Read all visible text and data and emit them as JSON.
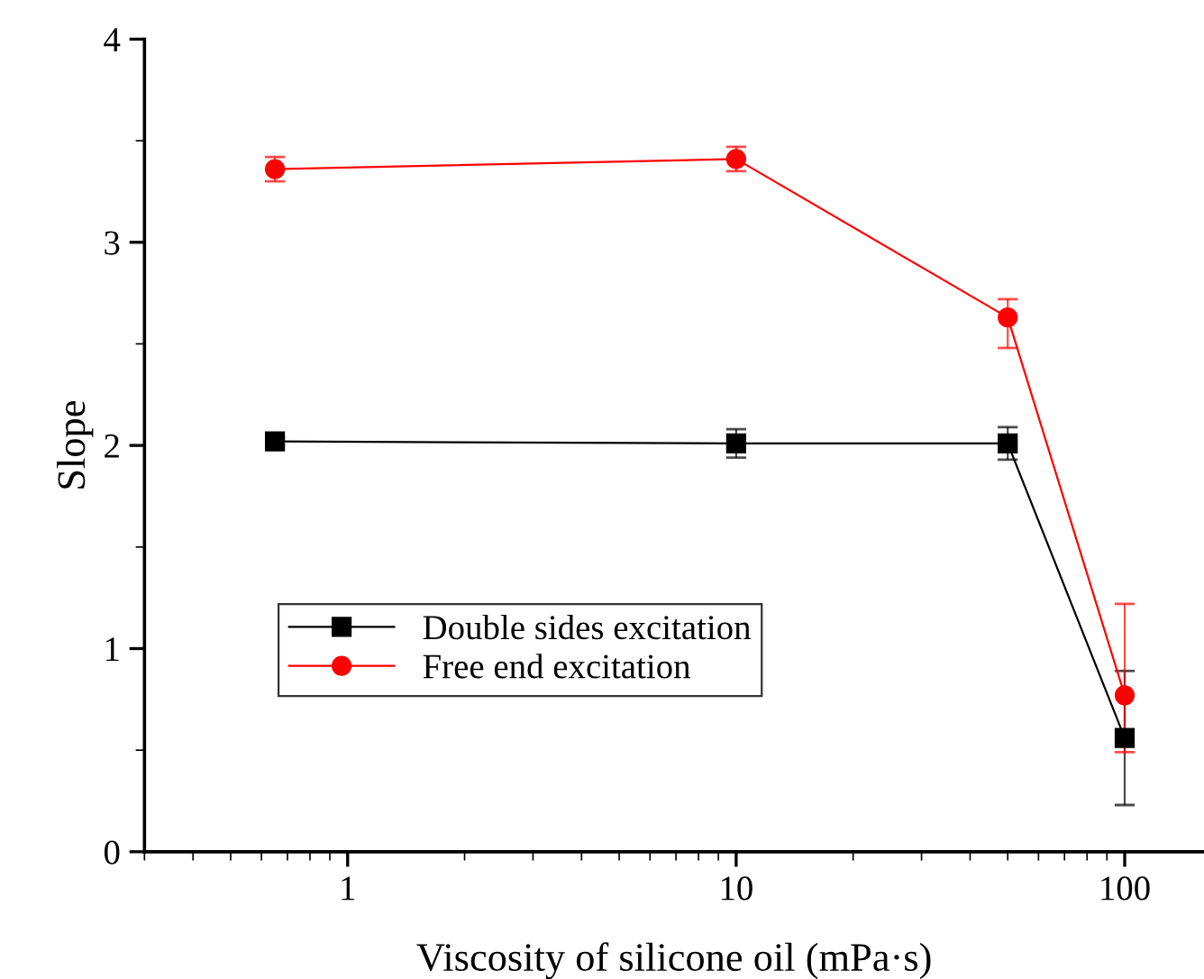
{
  "chart_data": {
    "type": "line",
    "xlabel": "Viscosity of silicone oil (mPa·s)",
    "ylabel": "Slope",
    "log": "x",
    "x": [
      0.65,
      10,
      50,
      100
    ],
    "xlim": [
      0.3,
      160
    ],
    "xticks": [
      1,
      10,
      100
    ],
    "ylim": [
      0,
      4
    ],
    "yticks": [
      0,
      1,
      2,
      3,
      4
    ],
    "grid": false,
    "legend": "bottom left",
    "line_style": "solid",
    "series": [
      {
        "name": "Double sides excitation",
        "color": "#000000",
        "marker": "square",
        "values": [
          2.02,
          2.01,
          2.01,
          0.56
        ],
        "errors": [
          0.02,
          0.07,
          0.08,
          0.33
        ]
      },
      {
        "name": "Free end excitation",
        "color": "#ff0000",
        "marker": "circle",
        "values": [
          3.36,
          3.41,
          2.63,
          0.77
        ],
        "errors": [
          0.06,
          0.06,
          [
            2.48,
            2.72
          ],
          [
            0.49,
            1.22
          ]
        ]
      }
    ]
  }
}
